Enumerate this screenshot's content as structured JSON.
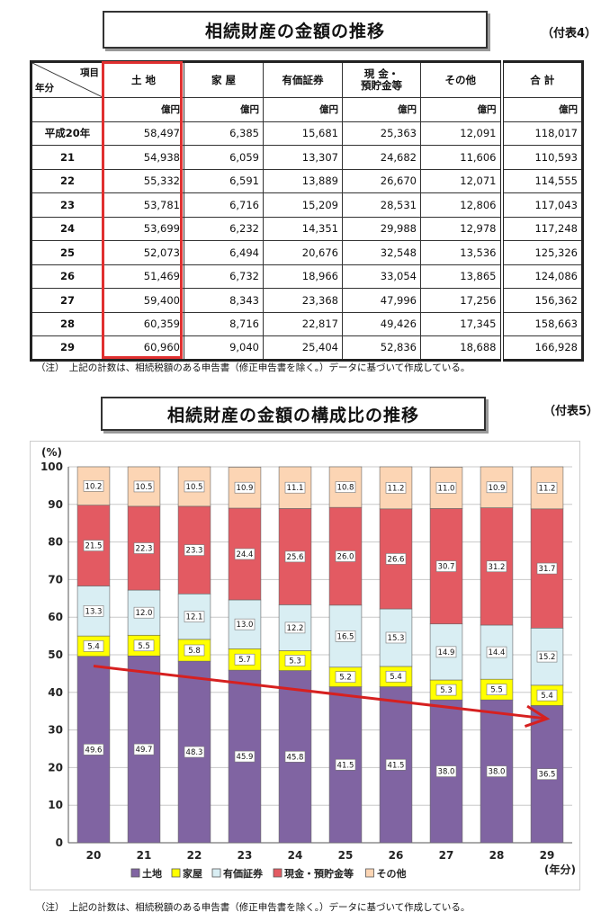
{
  "table_section": {
    "title": "相続財産の金額の推移",
    "ref": "（付表4）",
    "corner_item": "項目",
    "corner_year": "年分",
    "columns": [
      "土 地",
      "家 屋",
      "有価証券",
      "現 金・\n預貯金等",
      "その他",
      "合 計"
    ],
    "unit": "億円",
    "rows": [
      {
        "year": "平成20年",
        "values": [
          "58,497",
          "6,385",
          "15,681",
          "25,363",
          "12,091",
          "118,017"
        ]
      },
      {
        "year": "21",
        "values": [
          "54,938",
          "6,059",
          "13,307",
          "24,682",
          "11,606",
          "110,593"
        ]
      },
      {
        "year": "22",
        "values": [
          "55,332",
          "6,591",
          "13,889",
          "26,670",
          "12,071",
          "114,555"
        ]
      },
      {
        "year": "23",
        "values": [
          "53,781",
          "6,716",
          "15,209",
          "28,531",
          "12,806",
          "117,043"
        ]
      },
      {
        "year": "24",
        "values": [
          "53,699",
          "6,232",
          "14,351",
          "29,988",
          "12,978",
          "117,248"
        ]
      },
      {
        "year": "25",
        "values": [
          "52,073",
          "6,494",
          "20,676",
          "32,548",
          "13,536",
          "125,326"
        ]
      },
      {
        "year": "26",
        "values": [
          "51,469",
          "6,732",
          "18,966",
          "33,054",
          "13,865",
          "124,086"
        ]
      },
      {
        "year": "27",
        "values": [
          "59,400",
          "8,343",
          "23,368",
          "47,996",
          "17,256",
          "156,362"
        ]
      },
      {
        "year": "28",
        "values": [
          "60,359",
          "8,716",
          "22,817",
          "49,426",
          "17,345",
          "158,663"
        ]
      },
      {
        "year": "29",
        "values": [
          "60,960",
          "9,040",
          "25,404",
          "52,836",
          "18,688",
          "166,928"
        ]
      }
    ],
    "note": "（注）　上記の計数は、相続税額のある申告書（修正申告書を除く。）データに基づいて作成している。"
  },
  "chart_section": {
    "title": "相続財産の金額の構成比の推移",
    "ref": "（付表5）",
    "note": "（注）　上記の計数は、相続税額のある申告書（修正申告書を除く。）データに基づいて作成している。"
  },
  "chart_data": {
    "type": "bar",
    "stacked": true,
    "categories": [
      "20",
      "21",
      "22",
      "23",
      "24",
      "25",
      "26",
      "27",
      "28",
      "29"
    ],
    "ylabel": "(%)",
    "xlabel": "(年分)",
    "ylim": [
      0,
      100
    ],
    "yticks": [
      0,
      10,
      20,
      30,
      40,
      50,
      60,
      70,
      80,
      90,
      100
    ],
    "grid": true,
    "legend_position": "bottom",
    "series": [
      {
        "name": "土地",
        "color": "#8064a2",
        "values": [
          49.6,
          49.7,
          48.3,
          45.9,
          45.8,
          41.5,
          41.5,
          38.0,
          38.0,
          36.5
        ]
      },
      {
        "name": "家屋",
        "color": "#ffff00",
        "values": [
          5.4,
          5.5,
          5.8,
          5.7,
          5.3,
          5.2,
          5.4,
          5.3,
          5.5,
          5.4
        ]
      },
      {
        "name": "有価証券",
        "color": "#d9eef3",
        "values": [
          13.3,
          12.0,
          12.1,
          13.0,
          12.2,
          16.5,
          15.3,
          14.9,
          14.4,
          15.2
        ]
      },
      {
        "name": "現金・預貯金等",
        "color": "#e35a62",
        "values": [
          21.5,
          22.3,
          23.3,
          24.4,
          25.6,
          26.0,
          26.6,
          30.7,
          31.2,
          31.7
        ]
      },
      {
        "name": "その他",
        "color": "#fcd5b4",
        "values": [
          10.2,
          10.5,
          10.5,
          10.9,
          11.1,
          10.8,
          11.2,
          11.0,
          10.9,
          11.2
        ]
      }
    ],
    "annotation": {
      "type": "arrow",
      "color": "#d62020",
      "from": {
        "x": "20",
        "y": 47
      },
      "to": {
        "x": "29",
        "y": 33
      }
    }
  }
}
